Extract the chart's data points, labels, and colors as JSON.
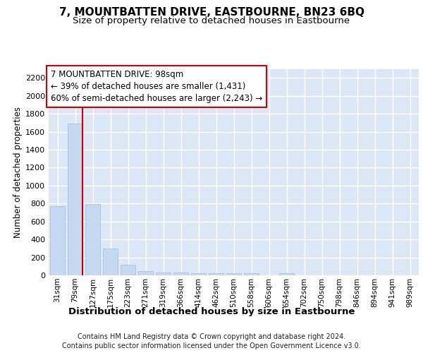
{
  "title": "7, MOUNTBATTEN DRIVE, EASTBOURNE, BN23 6BQ",
  "subtitle": "Size of property relative to detached houses in Eastbourne",
  "xlabel": "Distribution of detached houses by size in Eastbourne",
  "ylabel": "Number of detached properties",
  "categories": [
    "31sqm",
    "79sqm",
    "127sqm",
    "175sqm",
    "223sqm",
    "271sqm",
    "319sqm",
    "366sqm",
    "414sqm",
    "462sqm",
    "510sqm",
    "558sqm",
    "606sqm",
    "654sqm",
    "702sqm",
    "750sqm",
    "798sqm",
    "846sqm",
    "894sqm",
    "941sqm",
    "989sqm"
  ],
  "values": [
    770,
    1690,
    795,
    300,
    115,
    45,
    35,
    30,
    25,
    22,
    25,
    20,
    0,
    20,
    0,
    0,
    0,
    0,
    0,
    0,
    0
  ],
  "bar_color": "#c5d8f0",
  "bar_edgecolor": "#a0bedd",
  "ylim": [
    0,
    2300
  ],
  "yticks": [
    0,
    200,
    400,
    600,
    800,
    1000,
    1200,
    1400,
    1600,
    1800,
    2000,
    2200
  ],
  "annotation_line1": "7 MOUNTBATTEN DRIVE: 98sqm",
  "annotation_line2": "← 39% of detached houses are smaller (1,431)",
  "annotation_line3": "60% of semi-detached houses are larger (2,243) →",
  "vline_color": "#cc0000",
  "vline_x_index": 1,
  "background_color": "#dce6f5",
  "grid_color": "#ffffff",
  "footer_line1": "Contains HM Land Registry data © Crown copyright and database right 2024.",
  "footer_line2": "Contains public sector information licensed under the Open Government Licence v3.0."
}
